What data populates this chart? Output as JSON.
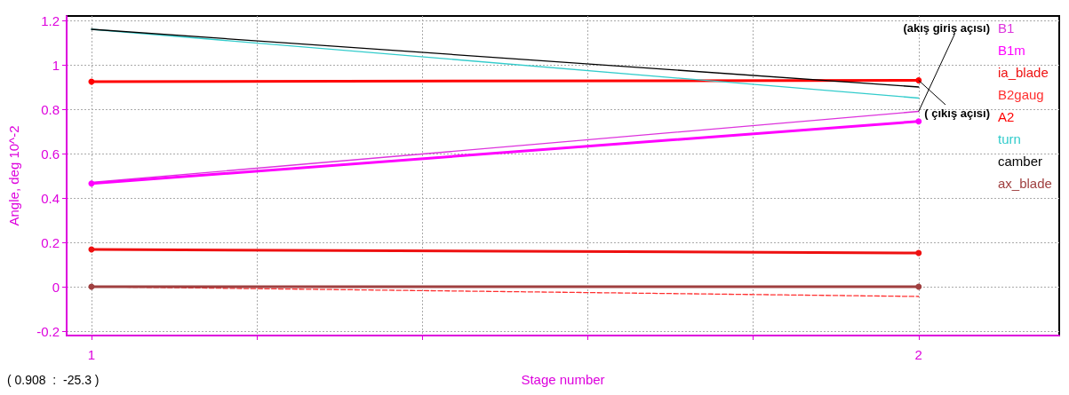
{
  "chart_data": {
    "type": "line",
    "xlabel": "Stage number",
    "ylabel": "Angle, deg 10^-2",
    "x": [
      1,
      2
    ],
    "xlim": [
      0.97,
      2.17
    ],
    "xticks": [
      {
        "value": 1,
        "label": "1"
      },
      {
        "value": 1.2,
        "label": null
      },
      {
        "value": 1.4,
        "label": null
      },
      {
        "value": 1.6,
        "label": null
      },
      {
        "value": 1.8,
        "label": null
      },
      {
        "value": 2,
        "label": "2"
      }
    ],
    "ylim": [
      -0.22,
      1.22
    ],
    "yticks": [
      -0.2,
      0,
      0.2,
      0.4,
      0.6,
      0.8,
      1,
      1.2
    ],
    "grid": true,
    "legend": "top right",
    "series": [
      {
        "name": "B1",
        "color": "#dd33dd",
        "values": [
          0.47,
          0.79
        ],
        "marker": "none"
      },
      {
        "name": "B1m",
        "color": "#ff00ff",
        "values": [
          0.465,
          0.745
        ],
        "marker": "circle"
      },
      {
        "name": "ia_blade",
        "color": "#ee1111",
        "values": [
          0.168,
          0.152
        ],
        "marker": "circle"
      },
      {
        "name": "B2gaug",
        "color": "#ff3030",
        "values": [
          0,
          -0.044
        ],
        "marker": "none",
        "line_style": "dashed"
      },
      {
        "name": "A2",
        "color": "#ff0000",
        "values": [
          0.924,
          0.93
        ],
        "marker": "circle"
      },
      {
        "name": "turn",
        "color": "#33cccc",
        "values": [
          1.16,
          0.85
        ],
        "marker": "none"
      },
      {
        "name": "camber",
        "color": "#000000",
        "values": [
          1.16,
          0.9
        ],
        "marker": "none"
      },
      {
        "name": "ax_blade",
        "color": "#a04040",
        "values": [
          0,
          0
        ],
        "marker": "circle"
      }
    ],
    "annotations": [
      {
        "text": "(akış giriş açısı)",
        "x": 2,
        "y": 0.79
      },
      {
        "text": "( çıkış açısı)",
        "x": 2,
        "y": 0.93
      },
      "( 0.908  :  -25.3 )"
    ]
  }
}
